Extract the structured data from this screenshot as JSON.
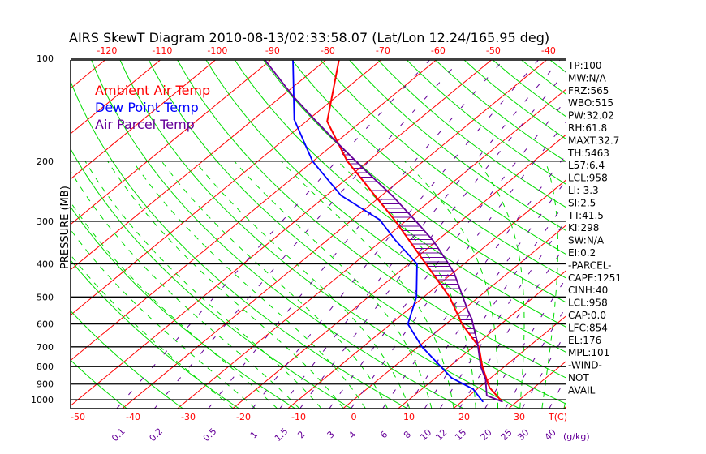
{
  "chart_data": {
    "type": "line",
    "subtype": "skew-t",
    "title": "AIRS SkewT Diagram 2010-08-13/02:33:58.07 (Lat/Lon 12.24/165.95 deg)",
    "ylabel": "PRESSURE (MB)",
    "xlabel": "T(C)",
    "mixing_ratio_label": "(g/kg)",
    "pressure_ticks": [
      100,
      200,
      300,
      400,
      500,
      600,
      700,
      800,
      900,
      1000
    ],
    "top_temp_ticks": [
      -120,
      -110,
      -100,
      -90,
      -80,
      -70,
      -60,
      -50,
      -40
    ],
    "bottom_temp_ticks": [
      -50,
      -40,
      -30,
      -20,
      -10,
      0,
      10,
      20,
      30
    ],
    "mixing_ratio_ticks": [
      "0.1",
      "0.2",
      "0.5",
      "1",
      "1.5",
      "2",
      "3",
      "4",
      "6",
      "8",
      "10",
      "12",
      "15",
      "20",
      "25",
      "30",
      "40"
    ],
    "legend": [
      {
        "label": "Ambient Air Temp",
        "color": "#ff0000"
      },
      {
        "label": "Dew Point Temp",
        "color": "#0000ff"
      },
      {
        "label": "Air Parcel Temp",
        "color": "#660099"
      }
    ],
    "series": [
      {
        "name": "Ambient Air Temp",
        "color": "#ff0000",
        "pressure": [
          1013,
          921,
          800,
          700,
          600,
          500,
          400,
          300,
          200,
          153,
          100
        ],
        "temperature": [
          27.3,
          21.9,
          16.0,
          11.0,
          2.9,
          -5.3,
          -16.9,
          -31.8,
          -53.8,
          -66.2,
          -77.9
        ]
      },
      {
        "name": "Dew Point Temp",
        "color": "#0000ff",
        "pressure": [
          1013,
          931,
          863,
          700,
          600,
          500,
          400,
          340,
          297,
          252,
          200,
          151,
          100
        ],
        "temperature": [
          23.8,
          19.3,
          12.9,
          0.7,
          -6.9,
          -11.3,
          -18.5,
          -27.8,
          -35.0,
          -47.4,
          -60.1,
          -72.6,
          -86.3
        ]
      },
      {
        "name": "Air Parcel Temp",
        "color": "#660099",
        "pressure": [
          1013,
          973,
          872,
          800,
          682,
          579,
          548,
          426,
          395,
          342,
          300,
          253,
          209,
          174,
          149,
          128,
          100
        ],
        "temperature": [
          27.3,
          23.2,
          19.4,
          15.7,
          9.9,
          3.5,
          1.0,
          -9.7,
          -13.4,
          -20.7,
          -28.1,
          -37.9,
          -49.6,
          -60.6,
          -69.7,
          -78.4,
          -91.6
        ]
      }
    ],
    "background": {
      "isotherm_step_c": 10,
      "dry_adiabat_step_k": 10,
      "moist_adiabat_step_c": 4
    }
  },
  "indices": [
    "TP:100",
    "MW:N/A",
    "FRZ:565",
    "WBO:515",
    "PW:32.02",
    "RH:61.8",
    "MAXT:32.7",
    "TH:5463",
    "L57:6.4",
    "LCL:958",
    "LI:-3.3",
    "SI:2.5",
    "TT:41.5",
    "KI:298",
    "SW:N/A",
    "EI:0.2",
    "-PARCEL-",
    "CAPE:1251",
    "CINH:40",
    "LCL:958",
    "CAP:0.0",
    "LFC:854",
    "EL:176",
    "MPL:101",
    "-WIND-",
    " NOT",
    "AVAIL"
  ],
  "colors": {
    "isotherm": "#ff0000",
    "dry_adiabat": "#00dd00",
    "moist_adiabat": "#00dd00",
    "mixing_ratio": "#660099",
    "axis": "#000000"
  }
}
